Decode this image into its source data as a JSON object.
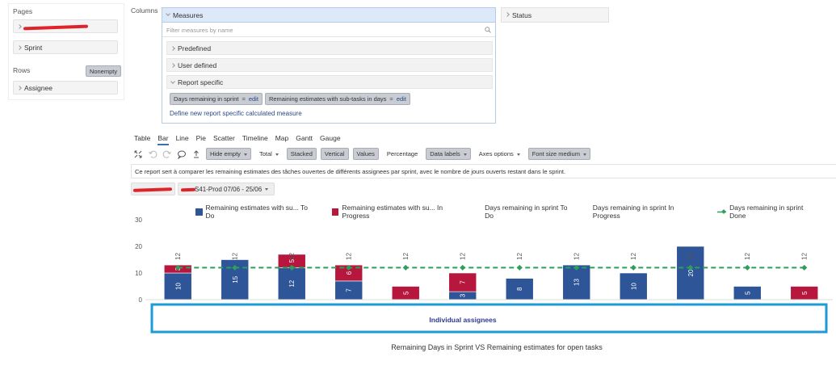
{
  "left_panel": {
    "pages_label": "Pages",
    "page_fields": [
      "Sprint"
    ],
    "rows_label": "Rows",
    "nonempty_button": "Nonempty",
    "row_fields": [
      "Assignee"
    ]
  },
  "columns_label": "Columns",
  "measures": {
    "title": "Measures",
    "search_placeholder": "Filter measures by name",
    "sections": [
      "Predefined",
      "User defined",
      "Report specific"
    ],
    "chips": [
      {
        "label": "Days remaining in sprint",
        "op": "=",
        "action": "edit"
      },
      {
        "label": "Remaining estimates with sub-tasks in days",
        "op": "=",
        "action": "edit"
      }
    ],
    "define_link": "Define new report specific calculated measure"
  },
  "status_field": "Status",
  "tabs": [
    "Table",
    "Bar",
    "Line",
    "Pie",
    "Scatter",
    "Timeline",
    "Map",
    "Gantt",
    "Gauge"
  ],
  "active_tab": "Bar",
  "toolbar": [
    {
      "label": "Hide empty",
      "dropdown": true,
      "pressed": true
    },
    {
      "label": "Total",
      "dropdown": true,
      "pressed": false
    },
    {
      "label": "Stacked",
      "dropdown": false,
      "pressed": true
    },
    {
      "label": "Vertical",
      "dropdown": false,
      "pressed": true
    },
    {
      "label": "Values",
      "dropdown": false,
      "pressed": true
    },
    {
      "label": "Percentage",
      "dropdown": false,
      "pressed": false
    },
    {
      "label": "Data labels",
      "dropdown": true,
      "pressed": true
    },
    {
      "label": "Axes options",
      "dropdown": true,
      "pressed": false
    },
    {
      "label": "Font size medium",
      "dropdown": true,
      "pressed": true
    }
  ],
  "description": "Ce report sert à comparer les remaining estimates des tâches ouvertes de différents assignees par sprint, avec le nombre de jours ouverts restant dans le sprint.",
  "sprint_filter": "S41-Prod 07/06 - 25/06",
  "chart_data": {
    "type": "bar",
    "stacked": true,
    "title": "Remaining Days in Sprint VS Remaining estimates for open tasks",
    "annotation": "Individual assignees",
    "categories": [
      null,
      null,
      null,
      null,
      null,
      null,
      null,
      null,
      null,
      null,
      null,
      null
    ],
    "series": [
      {
        "name": "Remaining estimates with su... To Do",
        "color": "#2d5597",
        "values": [
          10,
          15,
          12,
          7,
          null,
          3,
          8,
          13,
          10,
          20,
          5,
          null
        ]
      },
      {
        "name": "Remaining estimates with su... In Progress",
        "color": "#b8173d",
        "values": [
          3,
          null,
          5,
          6,
          5,
          7,
          null,
          null,
          null,
          null,
          null,
          5
        ]
      },
      {
        "name": "Days remaining in sprint To Do",
        "values": [
          null,
          null,
          null,
          null,
          null,
          null,
          null,
          null,
          null,
          null,
          null,
          null
        ]
      },
      {
        "name": "Days remaining in sprint In Progress",
        "values": [
          null,
          null,
          null,
          null,
          null,
          null,
          null,
          null,
          null,
          null,
          null,
          null
        ]
      },
      {
        "name": "Days remaining in sprint Done",
        "type": "line",
        "color": "#2e9e5b",
        "values": [
          12,
          12,
          12,
          12,
          12,
          12,
          12,
          12,
          12,
          12,
          12,
          12
        ]
      }
    ],
    "ylim": [
      0,
      30
    ],
    "yticks": [
      0,
      10,
      20,
      30
    ],
    "grid": false
  }
}
